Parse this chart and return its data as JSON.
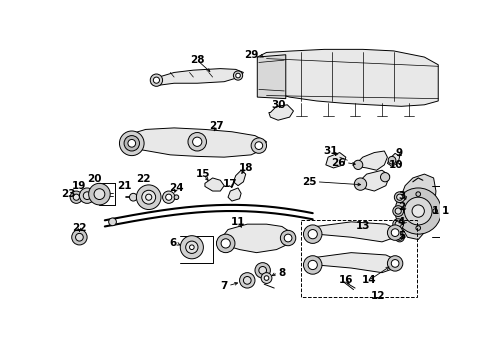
{
  "bg_color": "#ffffff",
  "fig_width": 4.9,
  "fig_height": 3.6,
  "dpi": 100,
  "line_color": "#000000",
  "label_fontsize": 7.5
}
